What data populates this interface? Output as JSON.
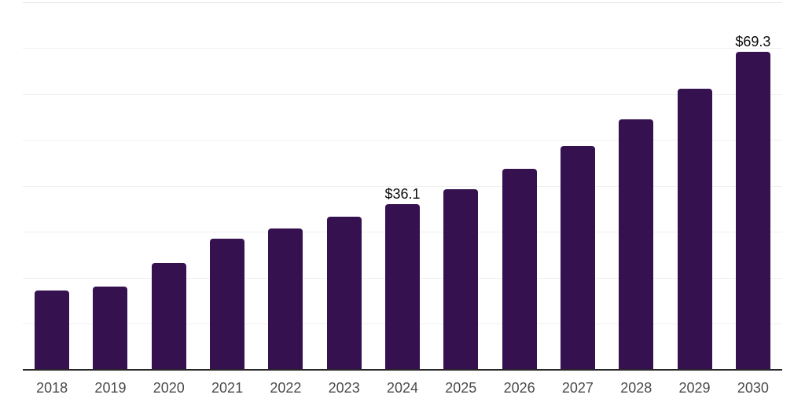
{
  "chart_data": {
    "type": "bar",
    "title": "",
    "xlabel": "",
    "ylabel": "",
    "categories": [
      "2018",
      "2019",
      "2020",
      "2021",
      "2022",
      "2023",
      "2024",
      "2025",
      "2026",
      "2027",
      "2028",
      "2029",
      "2030"
    ],
    "values": [
      17.3,
      18.2,
      23.3,
      28.5,
      30.8,
      33.3,
      36.1,
      39.4,
      43.8,
      48.8,
      54.5,
      61.2,
      69.3
    ],
    "point_labels": [
      null,
      null,
      null,
      null,
      null,
      null,
      "$36.1",
      null,
      null,
      null,
      null,
      null,
      "$69.3"
    ],
    "ylim": [
      0,
      80
    ],
    "gridline_step": 10,
    "grid": "horizontal",
    "legend": "none",
    "y_axis_labels_visible": false,
    "colors": {
      "bar": "#361150",
      "gridline": "#F0F0F0",
      "top_gridline": "#E3E3E3",
      "axis_line": "#262626",
      "tick_label": "#4A4A4A",
      "value_label": "#0A0A0A",
      "background": "#FFFFFF"
    }
  }
}
